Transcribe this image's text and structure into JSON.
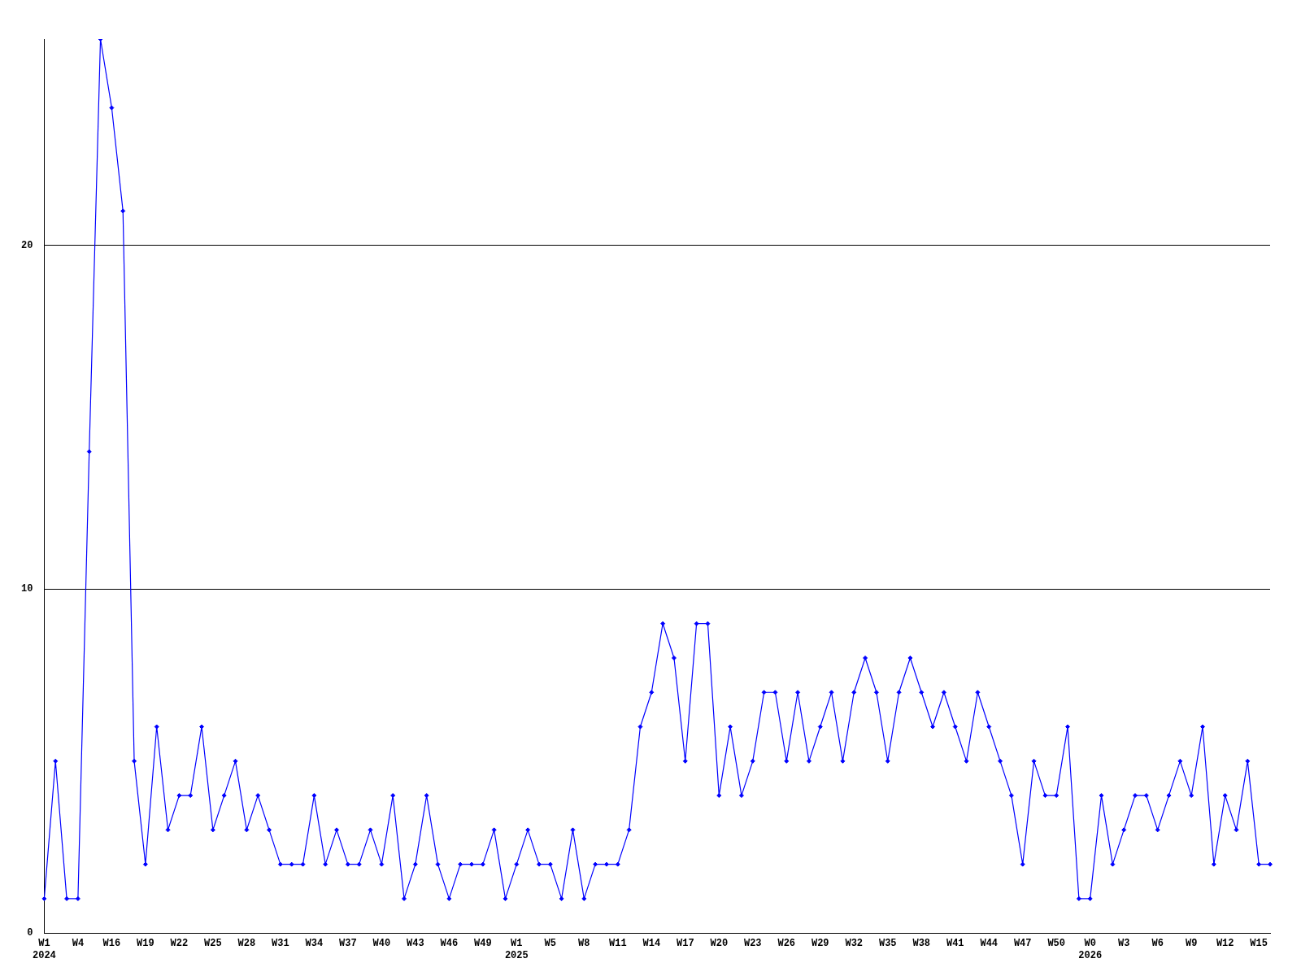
{
  "chart_data": {
    "type": "line",
    "categories": [
      "W1\n2024",
      null,
      null,
      "W4",
      null,
      null,
      "W16",
      null,
      null,
      "W19",
      null,
      null,
      "W22",
      null,
      null,
      "W25",
      null,
      null,
      "W28",
      null,
      null,
      "W31",
      null,
      null,
      "W34",
      null,
      null,
      "W37",
      null,
      null,
      "W40",
      null,
      null,
      "W43",
      null,
      null,
      "W46",
      null,
      null,
      "W49",
      null,
      null,
      "W1\n2025",
      null,
      null,
      "W5",
      null,
      null,
      "W8",
      null,
      null,
      "W11",
      null,
      null,
      "W14",
      null,
      null,
      "W17",
      null,
      null,
      "W20",
      null,
      null,
      "W23",
      null,
      null,
      "W26",
      null,
      null,
      "W29",
      null,
      null,
      "W32",
      null,
      null,
      "W35",
      null,
      null,
      "W38",
      null,
      null,
      "W41",
      null,
      null,
      "W44",
      null,
      null,
      "W47",
      null,
      null,
      "W50",
      null,
      null,
      "W0\n2026",
      null,
      null,
      "W3",
      null,
      null,
      "W6",
      null,
      null,
      "W9",
      null,
      null,
      "W12",
      null,
      null,
      "W15",
      null
    ],
    "series": [
      {
        "color": "#0000ff",
        "values": [
          1,
          5,
          1,
          1,
          14,
          26,
          24,
          21,
          5,
          2,
          6,
          3,
          4,
          4,
          6,
          3,
          4,
          5,
          3,
          4,
          3,
          2,
          2,
          2,
          4,
          2,
          3,
          2,
          2,
          3,
          2,
          4,
          1,
          2,
          4,
          2,
          1,
          2,
          2,
          2,
          3,
          1,
          2,
          3,
          2,
          2,
          1,
          3,
          1,
          2,
          2,
          2,
          3,
          6,
          7,
          9,
          8,
          5,
          9,
          9,
          4,
          6,
          4,
          5,
          7,
          7,
          5,
          7,
          5,
          6,
          7,
          5,
          7,
          8,
          7,
          5,
          7,
          8,
          7,
          6,
          7,
          6,
          5,
          7,
          6,
          5,
          4,
          2,
          5,
          4,
          4,
          6,
          1,
          1,
          4,
          2,
          3,
          4,
          4,
          3,
          4,
          5,
          4,
          6,
          2,
          4,
          3,
          5,
          2,
          2
        ]
      }
    ],
    "ylim": [
      0,
      26
    ],
    "yticks": [
      0,
      10,
      20
    ],
    "grid": "y",
    "marker": "diamond",
    "line_style": "solid",
    "legend": false
  }
}
